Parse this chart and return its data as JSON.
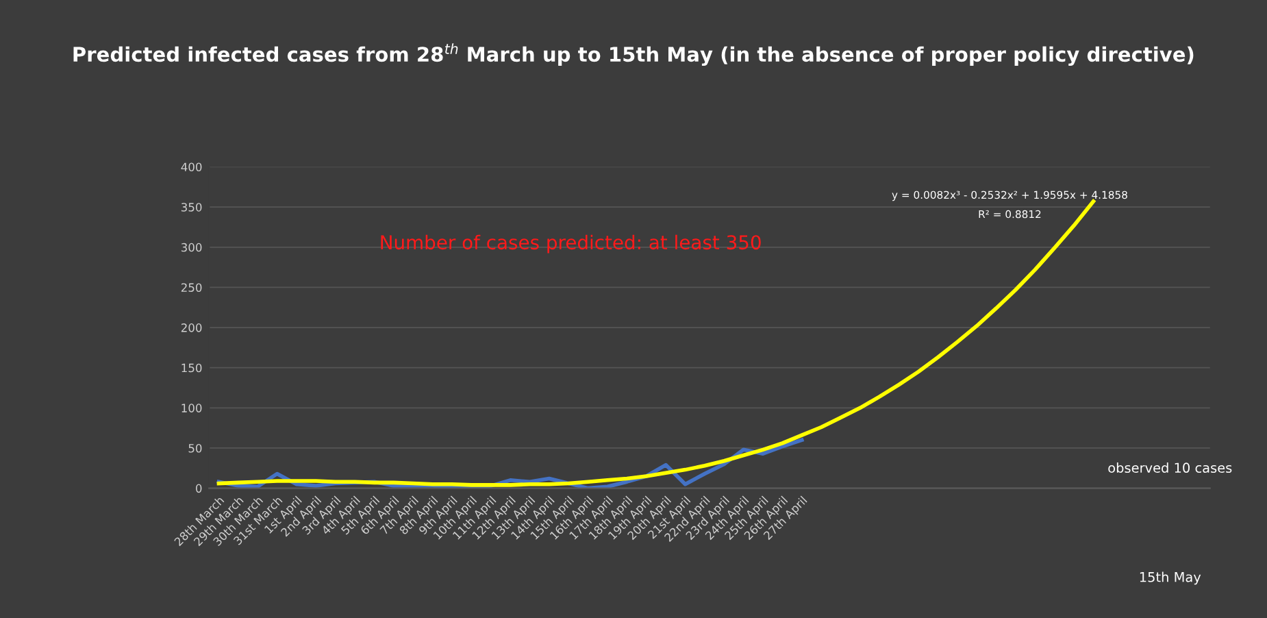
{
  "chart_data": {
    "type": "line",
    "title": "Predicted infected cases from 28$^{th}$ March up to 15th May (in the absence of proper policy directive)",
    "categories": [
      "28th March",
      "29th March",
      "30th March",
      "31st March",
      "1st April",
      "2nd April",
      "3rd April",
      "4th April",
      "5th April",
      "6th April",
      "7th April",
      "8th April",
      "9th April",
      "10th April",
      "11th April",
      "12th April",
      "13th April",
      "14th April",
      "15th April",
      "16th April",
      "17th April",
      "18th April",
      "19th April",
      "20th April",
      "21st April",
      "22nd April",
      "23rd April",
      "24th April",
      "25th April",
      "26th April",
      "27th April",
      null,
      null,
      null,
      null,
      null,
      null,
      null,
      null,
      null,
      null,
      null,
      null,
      null,
      null,
      null
    ],
    "series": [
      {
        "color": "#4472c4",
        "values": [
          8,
          3,
          2,
          18,
          5,
          3,
          6,
          7,
          8,
          3,
          3,
          3,
          1,
          1,
          3,
          10,
          8,
          12,
          6,
          0,
          2,
          8,
          15,
          29,
          5,
          18,
          30,
          48,
          43,
          52,
          60,
          null,
          null,
          null,
          null,
          null,
          null,
          null,
          null,
          null,
          null,
          null,
          null,
          null,
          null,
          null
        ]
      },
      {
        "type": "line",
        "color": "#ffff00",
        "values": [
          6,
          7,
          8,
          9,
          9,
          9,
          8,
          8,
          7,
          7,
          6,
          5,
          5,
          4,
          4,
          4,
          5,
          5,
          6,
          8,
          10,
          12,
          15,
          19,
          23,
          28,
          34,
          41,
          48,
          56,
          66,
          76,
          88,
          100,
          114,
          129,
          145,
          163,
          182,
          202,
          224,
          247,
          272,
          299,
          327,
          357
        ]
      }
    ],
    "ylim": [
      0,
      400
    ],
    "yticks": [
      0,
      50,
      100,
      150,
      200,
      250,
      300,
      350,
      400
    ],
    "grid": "y",
    "line_style": "solid",
    "annotations": [
      "y = 0.0082x³ - 0.2532x² + 1.9595x + 4.1858",
      "R² = 0.8812",
      "Number of cases predicted: at least 350",
      "observed 10 cases",
      "15th May"
    ]
  }
}
